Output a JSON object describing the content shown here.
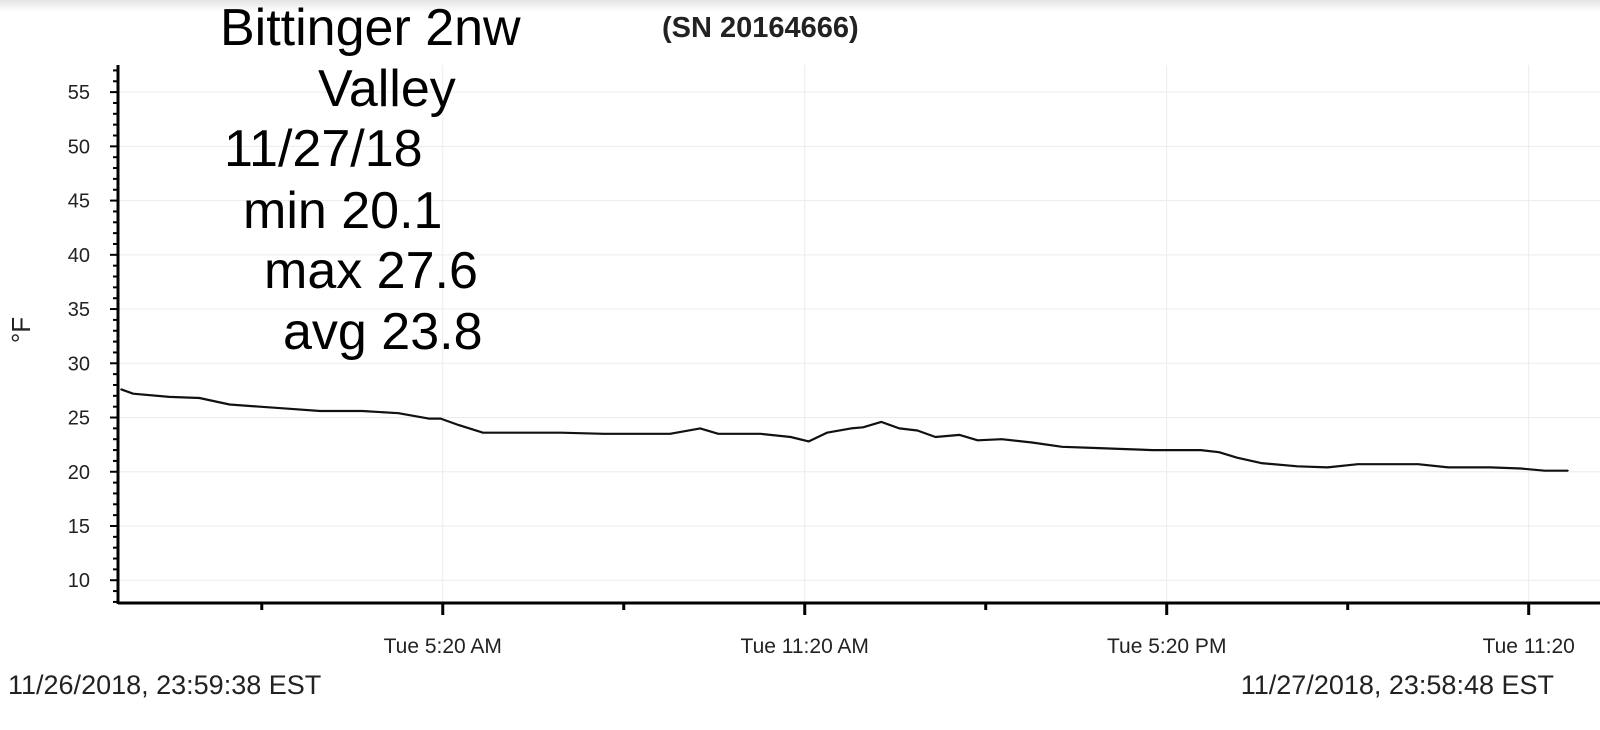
{
  "header": {
    "serial": "(SN 20164666)"
  },
  "annotation": {
    "lines": [
      "Bittinger 2nw",
      "Valley",
      "11/27/18",
      "min 20.1",
      "max 27.6",
      "avg 23.8"
    ]
  },
  "footer": {
    "start": "11/26/2018, 23:59:38 EST",
    "end": "11/27/2018, 23:58:48 EST"
  },
  "chart_data": {
    "type": "line",
    "ylabel": "°F",
    "xlabel": "",
    "ylim": [
      7.9,
      57.5
    ],
    "yticks": [
      10,
      15,
      20,
      25,
      30,
      35,
      40,
      45,
      50,
      55
    ],
    "xticks": [
      {
        "time": "05:20",
        "label": "Tue 5:20 AM"
      },
      {
        "time": "11:20",
        "label": "Tue 11:20 AM"
      },
      {
        "time": "17:20",
        "label": "Tue 5:20 PM"
      },
      {
        "time": "23:20",
        "label": "Tue 11:20"
      }
    ],
    "x_minor_ticks": [
      "02:20",
      "08:20",
      "14:20",
      "20:20"
    ],
    "grid": true,
    "line_color": "#111111",
    "series": [
      {
        "x": [
          "00:00",
          "00:12",
          "00:48",
          "01:18",
          "01:48",
          "02:18",
          "02:48",
          "03:18",
          "04:00",
          "04:36",
          "05:06",
          "05:18",
          "05:36",
          "06:00",
          "06:36",
          "07:18",
          "08:00",
          "08:36",
          "09:06",
          "09:36",
          "09:54",
          "10:36",
          "11:06",
          "11:24",
          "11:42",
          "12:06",
          "12:18",
          "12:36",
          "12:54",
          "13:12",
          "13:30",
          "13:54",
          "14:12",
          "14:36",
          "15:06",
          "15:36",
          "16:06",
          "16:36",
          "17:06",
          "17:24",
          "17:54",
          "18:12",
          "18:30",
          "18:54",
          "19:30",
          "20:00",
          "20:30",
          "21:00",
          "21:30",
          "22:00",
          "22:42",
          "23:12",
          "23:36",
          "23:59"
        ],
        "y": [
          27.6,
          27.2,
          26.9,
          26.8,
          26.2,
          26.0,
          25.8,
          25.6,
          25.6,
          25.4,
          24.9,
          24.9,
          24.3,
          23.6,
          23.6,
          23.6,
          23.5,
          23.5,
          23.5,
          24.0,
          23.5,
          23.5,
          23.2,
          22.8,
          23.6,
          24.0,
          24.1,
          24.6,
          24.0,
          23.8,
          23.2,
          23.4,
          22.9,
          23.0,
          22.7,
          22.3,
          22.2,
          22.1,
          22.0,
          22.0,
          22.0,
          21.8,
          21.3,
          20.8,
          20.5,
          20.4,
          20.7,
          20.7,
          20.7,
          20.4,
          20.4,
          20.3,
          20.1,
          20.1
        ]
      }
    ]
  }
}
